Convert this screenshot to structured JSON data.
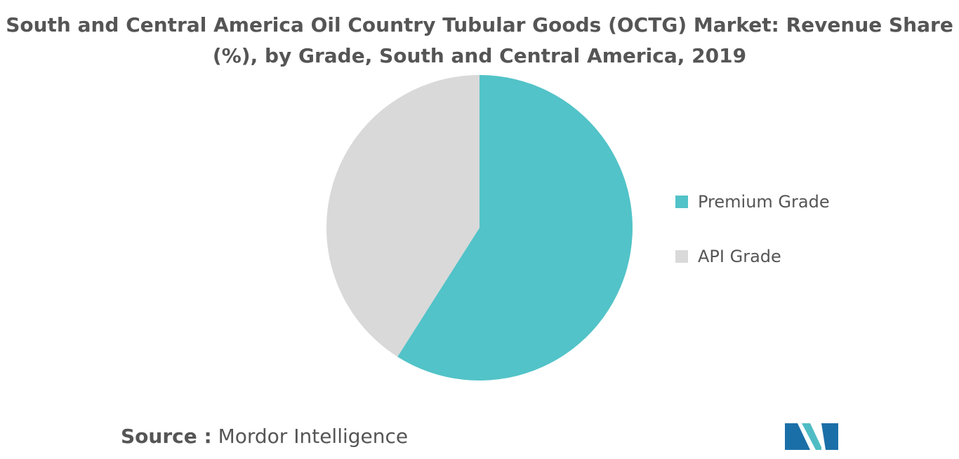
{
  "title": "South and Central America Oil Country Tubular Goods (OCTG) Market: Revenue Share (%), by Grade, South and Central America, 2019",
  "chart_data": {
    "type": "pie",
    "title": "South and Central America Oil Country Tubular Goods (OCTG) Market: Revenue Share (%), by Grade, South and Central America, 2019",
    "categories": [
      "Premium Grade",
      "API Grade"
    ],
    "values": [
      59,
      41
    ],
    "colors": [
      "#52c3c8",
      "#d9d9d9"
    ],
    "start_angle": "12 o'clock",
    "direction": "clockwise",
    "legend": "right"
  },
  "source": {
    "label": "Source :",
    "value": "Mordor Intelligence"
  },
  "logo": {
    "name": "mordor-intelligence-logo",
    "colors": [
      "#1b6fa8",
      "#4fbcc4"
    ]
  }
}
